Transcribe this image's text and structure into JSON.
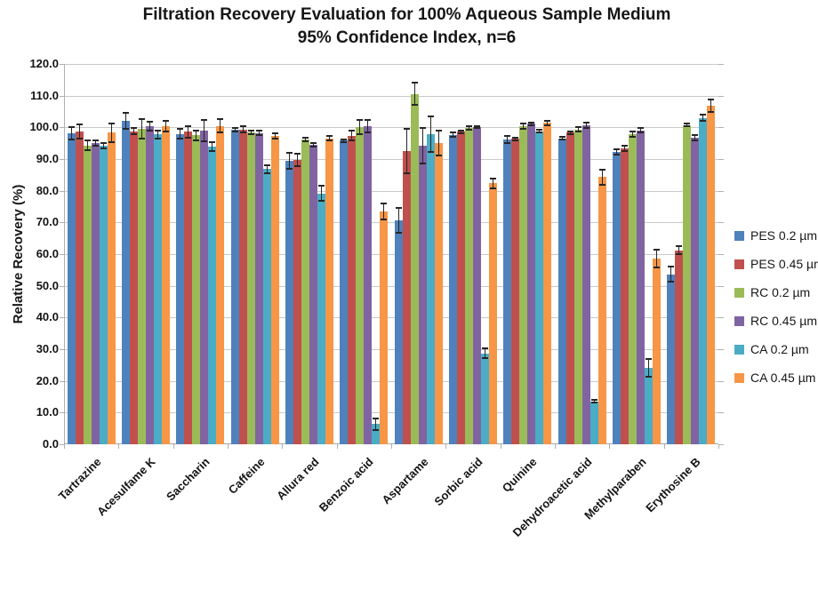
{
  "chart_data": {
    "type": "bar",
    "title_line1": "Filtration Recovery Evaluation for 100% Aqueous Sample Medium",
    "title_line2": "95% Confidence Index, n=6",
    "ylabel": "Relative Recovery (%)",
    "ylim": [
      0,
      120
    ],
    "ytick_step": 10,
    "ytick_labels": [
      "0.0",
      "10.0",
      "20.0",
      "30.0",
      "40.0",
      "50.0",
      "60.0",
      "70.0",
      "80.0",
      "90.0",
      "100.0",
      "110.0",
      "120.0"
    ],
    "grid": true,
    "legend_position": "right",
    "error_bars": true,
    "categories": [
      "Tartrazine",
      "Acesulfame K",
      "Saccharin",
      "Caffeine",
      "Allura red",
      "Benzoic acid",
      "Aspartame",
      "Sorbic acid",
      "Quinine",
      "Dehydroacetic acid",
      "Methylparaben",
      "Erythosine B"
    ],
    "series": [
      {
        "name": "PES 0.2 µm",
        "color": "#4F81BD",
        "values": [
          98.1,
          102.0,
          98.0,
          99.3,
          89.5,
          95.8,
          70.7,
          97.6,
          96.2,
          96.6,
          92.2,
          53.7
        ],
        "errors": [
          2.0,
          2.5,
          1.6,
          0.6,
          2.5,
          0.5,
          4.0,
          0.7,
          1.0,
          0.5,
          0.8,
          2.5
        ]
      },
      {
        "name": "PES 0.45 µm",
        "color": "#C0504D",
        "values": [
          98.8,
          98.8,
          98.6,
          99.4,
          89.8,
          97.4,
          92.5,
          98.6,
          96.4,
          98.3,
          93.4,
          61.2
        ],
        "errors": [
          2.2,
          1.0,
          1.9,
          1.0,
          2.0,
          1.5,
          7.0,
          0.5,
          0.4,
          0.5,
          0.8,
          1.2
        ]
      },
      {
        "name": "RC 0.2 µm",
        "color": "#9BBB59",
        "values": [
          94.3,
          99.5,
          97.5,
          98.4,
          96.2,
          100.2,
          110.5,
          99.8,
          100.4,
          99.4,
          97.8,
          100.8
        ],
        "errors": [
          1.6,
          3.0,
          1.6,
          0.5,
          0.6,
          2.2,
          3.5,
          0.5,
          0.8,
          0.8,
          0.8,
          0.5
        ]
      },
      {
        "name": "RC 0.45 µm",
        "color": "#8064A2",
        "values": [
          95.1,
          100.5,
          99.0,
          98.2,
          94.6,
          100.4,
          94.1,
          100.1,
          101.1,
          100.7,
          99.0,
          96.7
        ],
        "errors": [
          0.8,
          1.4,
          3.3,
          0.7,
          0.6,
          1.9,
          5.6,
          0.4,
          0.4,
          0.8,
          0.7,
          0.8
        ]
      },
      {
        "name": "CA 0.2 µm",
        "color": "#4BACC6",
        "values": [
          94.3,
          97.8,
          94.0,
          86.8,
          79.2,
          6.4,
          97.8,
          28.7,
          98.8,
          13.5,
          24.0,
          103.0
        ],
        "errors": [
          0.8,
          1.2,
          1.4,
          1.2,
          2.3,
          1.8,
          5.6,
          1.6,
          0.4,
          0.4,
          2.8,
          1.0
        ]
      },
      {
        "name": "CA 0.45 µm",
        "color": "#F79646",
        "values": [
          98.3,
          100.3,
          100.5,
          97.4,
          96.6,
          73.5,
          95.0,
          82.4,
          101.4,
          84.3,
          58.6,
          106.8
        ],
        "errors": [
          3.0,
          1.7,
          2.1,
          0.8,
          0.6,
          2.5,
          4.0,
          1.5,
          0.8,
          2.3,
          2.8,
          2.0
        ]
      }
    ]
  }
}
